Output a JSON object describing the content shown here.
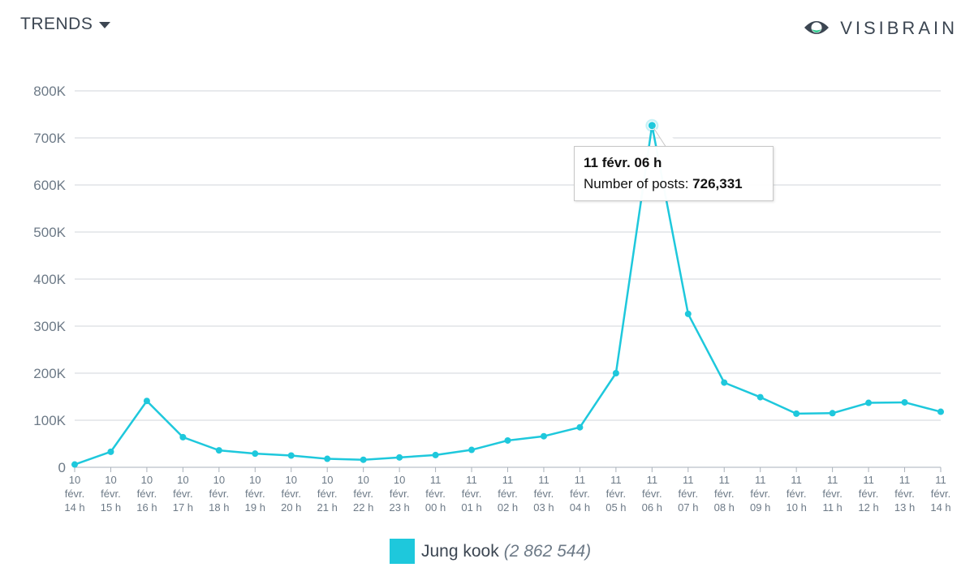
{
  "header": {
    "title": "TRENDS",
    "logo_text": "VISIBRAIN"
  },
  "colors": {
    "series": "#1ec8dc",
    "grid": "#d2d6db",
    "text": "#3c4652",
    "tick": "#6d7a87"
  },
  "tooltip": {
    "title": "11 févr. 06 h",
    "label": "Number of posts: ",
    "value": "726,331"
  },
  "legend": {
    "name": "Jung kook",
    "total": "(2 862 544)"
  },
  "chart_data": {
    "type": "line",
    "title": "",
    "xlabel": "",
    "ylabel": "",
    "ylim": [
      0,
      800000
    ],
    "grid": true,
    "legend_position": "bottom",
    "yticks": [
      {
        "value": 0,
        "label": "0"
      },
      {
        "value": 100000,
        "label": "100K"
      },
      {
        "value": 200000,
        "label": "200K"
      },
      {
        "value": 300000,
        "label": "300K"
      },
      {
        "value": 400000,
        "label": "400K"
      },
      {
        "value": 500000,
        "label": "500K"
      },
      {
        "value": 600000,
        "label": "600K"
      },
      {
        "value": 700000,
        "label": "700K"
      },
      {
        "value": 800000,
        "label": "800K"
      }
    ],
    "categories": [
      [
        "10",
        "févr.",
        "14 h"
      ],
      [
        "10",
        "févr.",
        "15 h"
      ],
      [
        "10",
        "févr.",
        "16 h"
      ],
      [
        "10",
        "févr.",
        "17 h"
      ],
      [
        "10",
        "févr.",
        "18 h"
      ],
      [
        "10",
        "févr.",
        "19 h"
      ],
      [
        "10",
        "févr.",
        "20 h"
      ],
      [
        "10",
        "févr.",
        "21 h"
      ],
      [
        "10",
        "févr.",
        "22 h"
      ],
      [
        "10",
        "févr.",
        "23 h"
      ],
      [
        "11",
        "févr.",
        "00 h"
      ],
      [
        "11",
        "févr.",
        "01 h"
      ],
      [
        "11",
        "févr.",
        "02 h"
      ],
      [
        "11",
        "févr.",
        "03 h"
      ],
      [
        "11",
        "févr.",
        "04 h"
      ],
      [
        "11",
        "févr.",
        "05 h"
      ],
      [
        "11",
        "févr.",
        "06 h"
      ],
      [
        "11",
        "févr.",
        "07 h"
      ],
      [
        "11",
        "févr.",
        "08 h"
      ],
      [
        "11",
        "févr.",
        "09 h"
      ],
      [
        "11",
        "févr.",
        "10 h"
      ],
      [
        "11",
        "févr.",
        "11 h"
      ],
      [
        "11",
        "févr.",
        "12 h"
      ],
      [
        "11",
        "févr.",
        "13 h"
      ],
      [
        "11",
        "févr.",
        "14 h"
      ]
    ],
    "highlight_index": 16,
    "series": [
      {
        "name": "Jung kook",
        "values": [
          6000,
          33000,
          141000,
          64000,
          36000,
          29000,
          25000,
          18000,
          16000,
          21000,
          26000,
          37000,
          57000,
          66000,
          85000,
          200000,
          726331,
          326000,
          180000,
          149000,
          114000,
          115000,
          137000,
          138000,
          118000
        ]
      }
    ]
  }
}
